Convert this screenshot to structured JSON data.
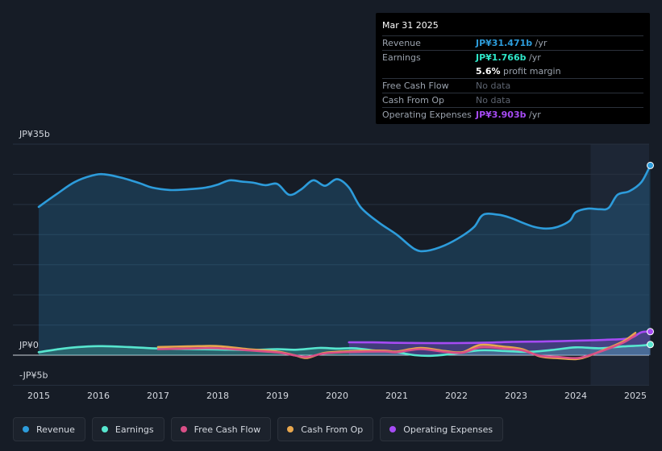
{
  "tooltip": {
    "date": "Mar 31 2025",
    "rows": [
      {
        "label": "Revenue",
        "value": "JP¥31.471b",
        "suffix": "/yr",
        "color": "#2d9cdb"
      },
      {
        "label": "Earnings",
        "value": "JP¥1.766b",
        "suffix": "/yr",
        "color": "#2ee6c8"
      },
      {
        "label": "",
        "value": "5.6%",
        "suffix": "profit margin",
        "color": "#ffffff"
      },
      {
        "label": "Free Cash Flow",
        "value": "No data",
        "suffix": "",
        "color": ""
      },
      {
        "label": "Cash From Op",
        "value": "No data",
        "suffix": "",
        "color": ""
      },
      {
        "label": "Operating Expenses",
        "value": "JP¥3.903b",
        "suffix": "/yr",
        "color": "#a64bf4"
      }
    ]
  },
  "legend": [
    {
      "label": "Revenue",
      "color": "#2d9cdb"
    },
    {
      "label": "Earnings",
      "color": "#57e6cf"
    },
    {
      "label": "Free Cash Flow",
      "color": "#d94f87"
    },
    {
      "label": "Cash From Op",
      "color": "#e8a74e"
    },
    {
      "label": "Operating Expenses",
      "color": "#a64bf4"
    }
  ],
  "chart_data": {
    "type": "area",
    "title": "",
    "xlabel": "",
    "ylabel": "",
    "ylim": [
      -5,
      35
    ],
    "y_tick_labels": [
      {
        "value": 35,
        "label": "JP¥35b"
      },
      {
        "value": 0,
        "label": "JP¥0"
      },
      {
        "value": -5,
        "label": "-JP¥5b"
      }
    ],
    "x_ticks": [
      {
        "value": 2015,
        "label": "2015"
      },
      {
        "value": 2016,
        "label": "2016"
      },
      {
        "value": 2017,
        "label": "2017"
      },
      {
        "value": 2018,
        "label": "2018"
      },
      {
        "value": 2019,
        "label": "2019"
      },
      {
        "value": 2020,
        "label": "2020"
      },
      {
        "value": 2021,
        "label": "2021"
      },
      {
        "value": 2022,
        "label": "2022"
      },
      {
        "value": 2023,
        "label": "2023"
      },
      {
        "value": 2024,
        "label": "2024"
      },
      {
        "value": 2025,
        "label": "2025"
      }
    ],
    "xlim": [
      2014.55,
      2025.25
    ],
    "highlight_from": 2024.25,
    "series": [
      {
        "name": "Revenue",
        "color": "#2d9cdb",
        "fill": true,
        "end_marker": true,
        "points": [
          [
            2015.0,
            24.6
          ],
          [
            2015.3,
            26.7
          ],
          [
            2015.6,
            28.7
          ],
          [
            2015.9,
            29.8
          ],
          [
            2016.1,
            30.0
          ],
          [
            2016.4,
            29.4
          ],
          [
            2016.7,
            28.5
          ],
          [
            2016.9,
            27.8
          ],
          [
            2017.2,
            27.4
          ],
          [
            2017.5,
            27.5
          ],
          [
            2017.8,
            27.8
          ],
          [
            2018.0,
            28.3
          ],
          [
            2018.2,
            29.0
          ],
          [
            2018.4,
            28.8
          ],
          [
            2018.6,
            28.6
          ],
          [
            2018.8,
            28.2
          ],
          [
            2019.0,
            28.4
          ],
          [
            2019.2,
            26.6
          ],
          [
            2019.4,
            27.5
          ],
          [
            2019.6,
            29.0
          ],
          [
            2019.8,
            28.1
          ],
          [
            2020.0,
            29.2
          ],
          [
            2020.2,
            27.8
          ],
          [
            2020.4,
            24.5
          ],
          [
            2020.7,
            22.0
          ],
          [
            2021.0,
            20.0
          ],
          [
            2021.3,
            17.6
          ],
          [
            2021.5,
            17.3
          ],
          [
            2021.8,
            18.2
          ],
          [
            2022.1,
            19.8
          ],
          [
            2022.3,
            21.3
          ],
          [
            2022.45,
            23.3
          ],
          [
            2022.7,
            23.3
          ],
          [
            2022.9,
            22.8
          ],
          [
            2023.1,
            22.0
          ],
          [
            2023.3,
            21.3
          ],
          [
            2023.5,
            21.0
          ],
          [
            2023.7,
            21.3
          ],
          [
            2023.9,
            22.3
          ],
          [
            2024.0,
            23.7
          ],
          [
            2024.2,
            24.3
          ],
          [
            2024.4,
            24.2
          ],
          [
            2024.55,
            24.4
          ],
          [
            2024.7,
            26.6
          ],
          [
            2024.9,
            27.2
          ],
          [
            2025.1,
            28.7
          ],
          [
            2025.25,
            31.47
          ]
        ]
      },
      {
        "name": "Operating Expenses",
        "color": "#a64bf4",
        "fill": true,
        "end_marker": true,
        "points": [
          [
            2020.2,
            2.14
          ],
          [
            2020.6,
            2.12
          ],
          [
            2021.0,
            2.05
          ],
          [
            2021.5,
            2.0
          ],
          [
            2022.0,
            2.0
          ],
          [
            2022.5,
            2.08
          ],
          [
            2023.0,
            2.22
          ],
          [
            2023.5,
            2.28
          ],
          [
            2024.0,
            2.4
          ],
          [
            2024.5,
            2.55
          ],
          [
            2024.9,
            2.8
          ],
          [
            2025.1,
            3.8
          ],
          [
            2025.25,
            3.9
          ]
        ]
      },
      {
        "name": "Earnings",
        "color": "#57e6cf",
        "fill": true,
        "end_marker": true,
        "points": [
          [
            2015.0,
            0.5
          ],
          [
            2015.3,
            0.95
          ],
          [
            2015.6,
            1.3
          ],
          [
            2016.0,
            1.5
          ],
          [
            2016.5,
            1.35
          ],
          [
            2017.0,
            1.1
          ],
          [
            2017.5,
            1.0
          ],
          [
            2018.0,
            0.95
          ],
          [
            2018.5,
            0.85
          ],
          [
            2019.0,
            1.0
          ],
          [
            2019.3,
            0.9
          ],
          [
            2019.7,
            1.2
          ],
          [
            2020.0,
            1.1
          ],
          [
            2020.3,
            1.15
          ],
          [
            2020.6,
            0.8
          ],
          [
            2021.0,
            0.5
          ],
          [
            2021.3,
            0.0
          ],
          [
            2021.6,
            -0.1
          ],
          [
            2022.0,
            0.3
          ],
          [
            2022.4,
            0.8
          ],
          [
            2022.8,
            0.7
          ],
          [
            2023.2,
            0.55
          ],
          [
            2023.6,
            0.85
          ],
          [
            2024.0,
            1.3
          ],
          [
            2024.4,
            1.15
          ],
          [
            2024.8,
            1.45
          ],
          [
            2025.1,
            1.6
          ],
          [
            2025.25,
            1.77
          ]
        ]
      },
      {
        "name": "Cash From Op",
        "color": "#e8a74e",
        "fill": false,
        "end_marker": false,
        "points": [
          [
            2017.0,
            1.35
          ],
          [
            2017.5,
            1.45
          ],
          [
            2018.0,
            1.5
          ],
          [
            2018.5,
            1.0
          ],
          [
            2019.0,
            0.6
          ],
          [
            2019.3,
            -0.05
          ],
          [
            2019.5,
            -0.45
          ],
          [
            2019.8,
            0.4
          ],
          [
            2020.3,
            0.7
          ],
          [
            2020.8,
            0.75
          ],
          [
            2021.0,
            0.6
          ],
          [
            2021.4,
            1.2
          ],
          [
            2021.8,
            0.7
          ],
          [
            2022.1,
            0.5
          ],
          [
            2022.4,
            1.7
          ],
          [
            2022.8,
            1.4
          ],
          [
            2023.1,
            1.0
          ],
          [
            2023.4,
            -0.2
          ],
          [
            2023.7,
            -0.5
          ],
          [
            2024.0,
            -0.65
          ],
          [
            2024.2,
            -0.2
          ],
          [
            2024.5,
            1.0
          ],
          [
            2024.8,
            2.3
          ],
          [
            2025.0,
            3.7
          ]
        ]
      },
      {
        "name": "Free Cash Flow",
        "color": "#d94f87",
        "fill": false,
        "end_marker": false,
        "points": [
          [
            2017.0,
            1.0
          ],
          [
            2017.5,
            1.1
          ],
          [
            2018.0,
            1.15
          ],
          [
            2018.5,
            0.8
          ],
          [
            2019.0,
            0.45
          ],
          [
            2019.3,
            -0.05
          ],
          [
            2019.5,
            -0.3
          ],
          [
            2019.8,
            0.3
          ],
          [
            2020.3,
            0.55
          ],
          [
            2020.8,
            0.6
          ],
          [
            2021.0,
            0.5
          ],
          [
            2021.4,
            1.0
          ],
          [
            2021.8,
            0.55
          ],
          [
            2022.1,
            0.4
          ],
          [
            2022.4,
            1.3
          ],
          [
            2022.8,
            1.1
          ],
          [
            2023.1,
            0.8
          ],
          [
            2023.4,
            -0.1
          ],
          [
            2023.7,
            -0.3
          ],
          [
            2024.0,
            -0.5
          ],
          [
            2024.2,
            -0.1
          ],
          [
            2024.5,
            0.9
          ],
          [
            2024.8,
            2.1
          ],
          [
            2025.0,
            3.3
          ]
        ]
      }
    ]
  }
}
